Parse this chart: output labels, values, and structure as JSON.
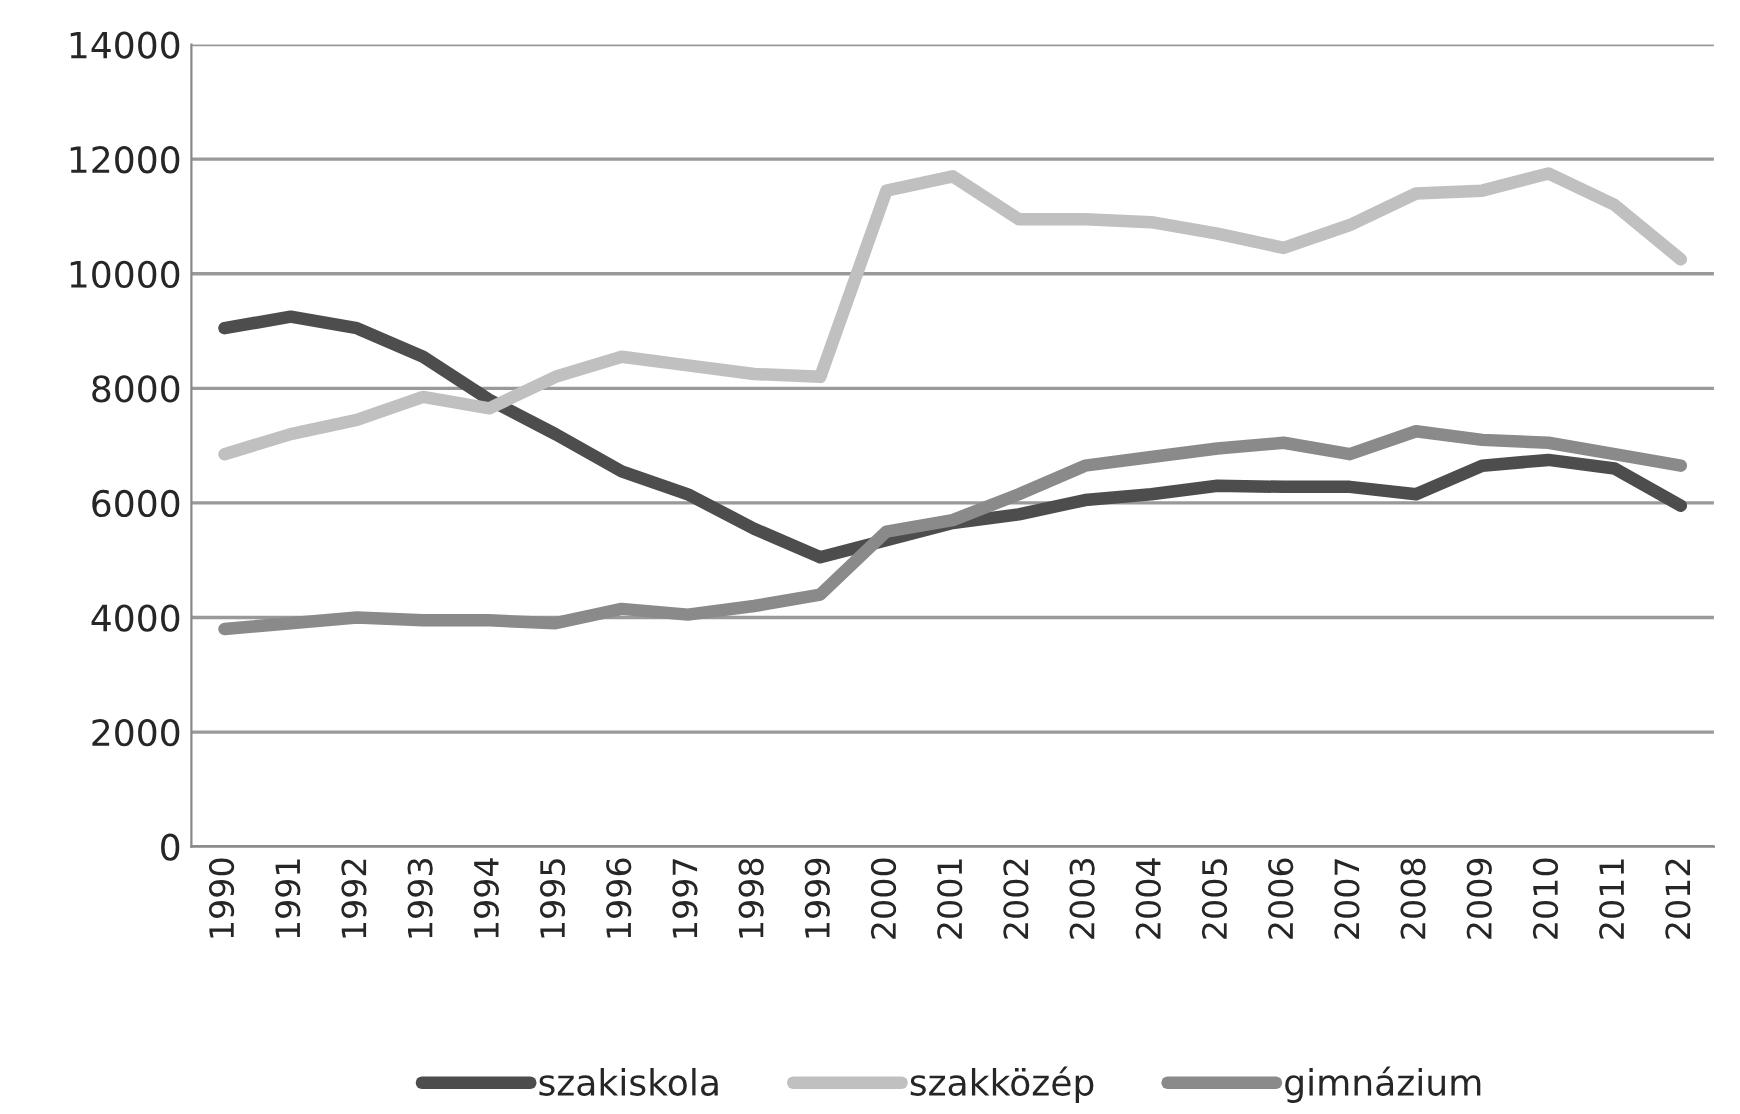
{
  "chart_data": {
    "type": "line",
    "categories": [
      "1990",
      "1991",
      "1992",
      "1993",
      "1994",
      "1995",
      "1996",
      "1997",
      "1998",
      "1999",
      "2000",
      "2001",
      "2002",
      "2003",
      "2004",
      "2005",
      "2006",
      "2007",
      "2008",
      "2009",
      "2010",
      "2011",
      "2012"
    ],
    "series": [
      {
        "name": "szakiskola",
        "color": "#4d4d4d",
        "values": [
          9050,
          9250,
          9050,
          8550,
          7800,
          7200,
          6550,
          6150,
          5550,
          5050,
          5350,
          5650,
          5800,
          6050,
          6150,
          6300,
          6280,
          6280,
          6150,
          6650,
          6750,
          6600,
          5950
        ]
      },
      {
        "name": "szakközép",
        "color": "#c0c0c0",
        "values": [
          6850,
          7200,
          7450,
          7850,
          7650,
          8200,
          8550,
          8400,
          8250,
          8200,
          11450,
          11700,
          10950,
          10950,
          10900,
          10700,
          10450,
          10850,
          11400,
          11450,
          11750,
          11200,
          10250
        ]
      },
      {
        "name": "gimnázium",
        "color": "#8a8a8a",
        "values": [
          3800,
          3900,
          4000,
          3950,
          3950,
          3900,
          4150,
          4050,
          4200,
          4400,
          5500,
          5700,
          6150,
          6650,
          6800,
          6950,
          7050,
          6850,
          7250,
          7100,
          7050,
          6850,
          6650
        ]
      }
    ],
    "ylim": [
      0,
      14000
    ],
    "yticks": [
      0,
      2000,
      4000,
      6000,
      8000,
      10000,
      12000,
      14000
    ],
    "grid": "y",
    "legend": "bottom",
    "marker": "none",
    "line_style": "solid"
  }
}
